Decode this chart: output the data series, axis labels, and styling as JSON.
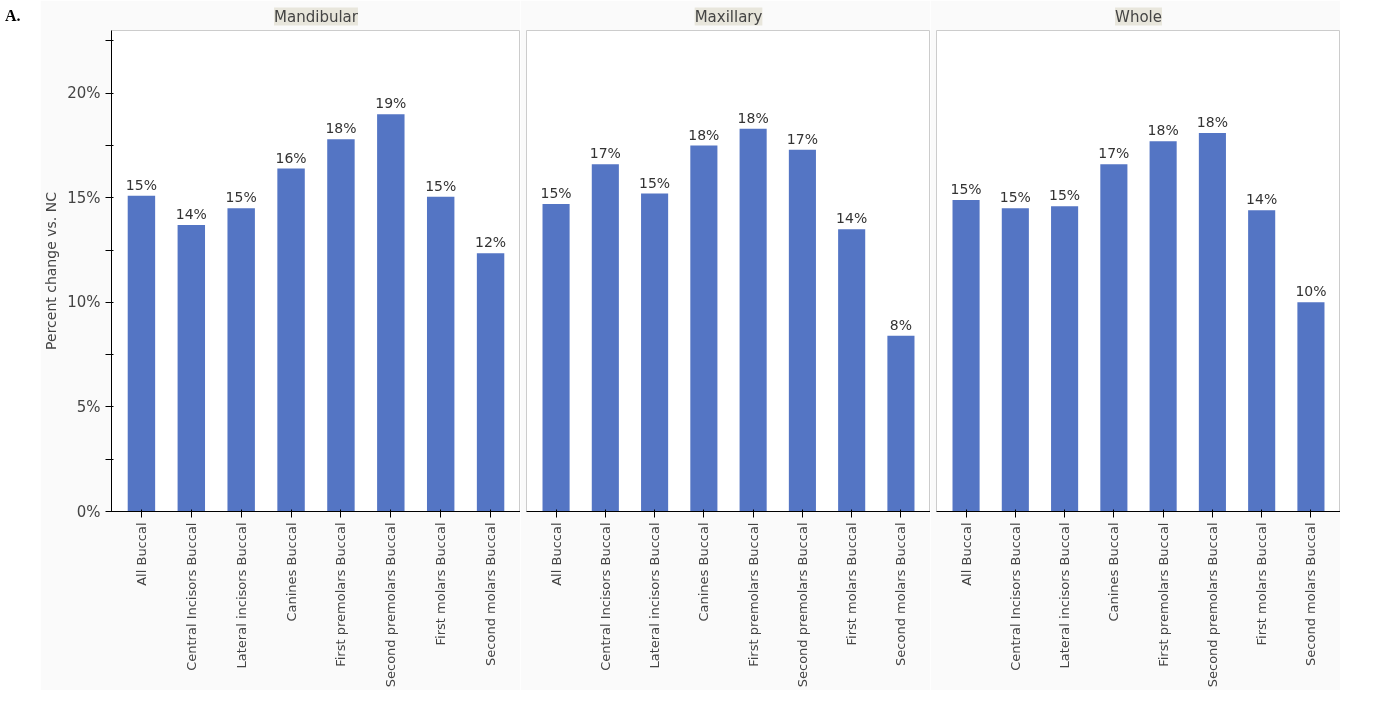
{
  "chart_data": [
    {
      "type": "bar",
      "title": "Mandibular",
      "ylabel": "Percent change vs. NC",
      "annotations": [
        "A."
      ],
      "categories": [
        "All Buccal",
        "Central Incisors Buccal",
        "Lateral incisors Buccal",
        "Canines Buccal",
        "First premolars Buccal",
        "Second premolars Buccal",
        "First molars Buccal",
        "Second molars Buccal"
      ],
      "values": [
        15.1,
        13.7,
        14.5,
        16.4,
        17.8,
        19.0,
        15.05,
        12.35
      ],
      "value_labels": [
        "15%",
        "14%",
        "15%",
        "16%",
        "18%",
        "19%",
        "15%",
        "12%"
      ],
      "color": "#5475c4",
      "ylim": [
        0,
        23
      ],
      "yticks": [
        {
          "value": 0,
          "label": "0%"
        },
        {
          "value": 2.5,
          "label": null
        },
        {
          "value": 5,
          "label": "5%"
        },
        {
          "value": 7.5,
          "label": null
        },
        {
          "value": 10,
          "label": "10%"
        },
        {
          "value": 12.5,
          "label": null
        },
        {
          "value": 15,
          "label": "15%"
        },
        {
          "value": 17.5,
          "label": null
        },
        {
          "value": 20,
          "label": "20%"
        },
        {
          "value": 22.5,
          "label": null
        }
      ]
    },
    {
      "type": "bar",
      "title": "Maxillary",
      "tick_labels": "x",
      "categories": [
        "All Buccal",
        "Central Incisors Buccal",
        "Lateral incisors Buccal",
        "Canines Buccal",
        "First premolars Buccal",
        "Second premolars Buccal",
        "First molars Buccal",
        "Second molars Buccal"
      ],
      "values": [
        14.7,
        16.6,
        15.2,
        17.5,
        18.3,
        17.3,
        13.5,
        8.4
      ],
      "value_labels": [
        "15%",
        "17%",
        "15%",
        "18%",
        "18%",
        "17%",
        "14%",
        "8%"
      ],
      "color": "#5475c4",
      "ylim": [
        0,
        23
      ]
    },
    {
      "type": "bar",
      "title": "Whole",
      "tick_labels": "x",
      "categories": [
        "All Buccal",
        "Central Incisors Buccal",
        "Lateral incisors Buccal",
        "Canines Buccal",
        "First premolars Buccal",
        "Second premolars Buccal",
        "First molars Buccal",
        "Second molars Buccal"
      ],
      "values": [
        14.9,
        14.5,
        14.6,
        16.6,
        17.7,
        18.1,
        14.4,
        10.0
      ],
      "value_labels": [
        "15%",
        "15%",
        "15%",
        "17%",
        "18%",
        "18%",
        "14%",
        "10%"
      ],
      "color": "#5475c4",
      "ylim": [
        0,
        23
      ]
    }
  ]
}
